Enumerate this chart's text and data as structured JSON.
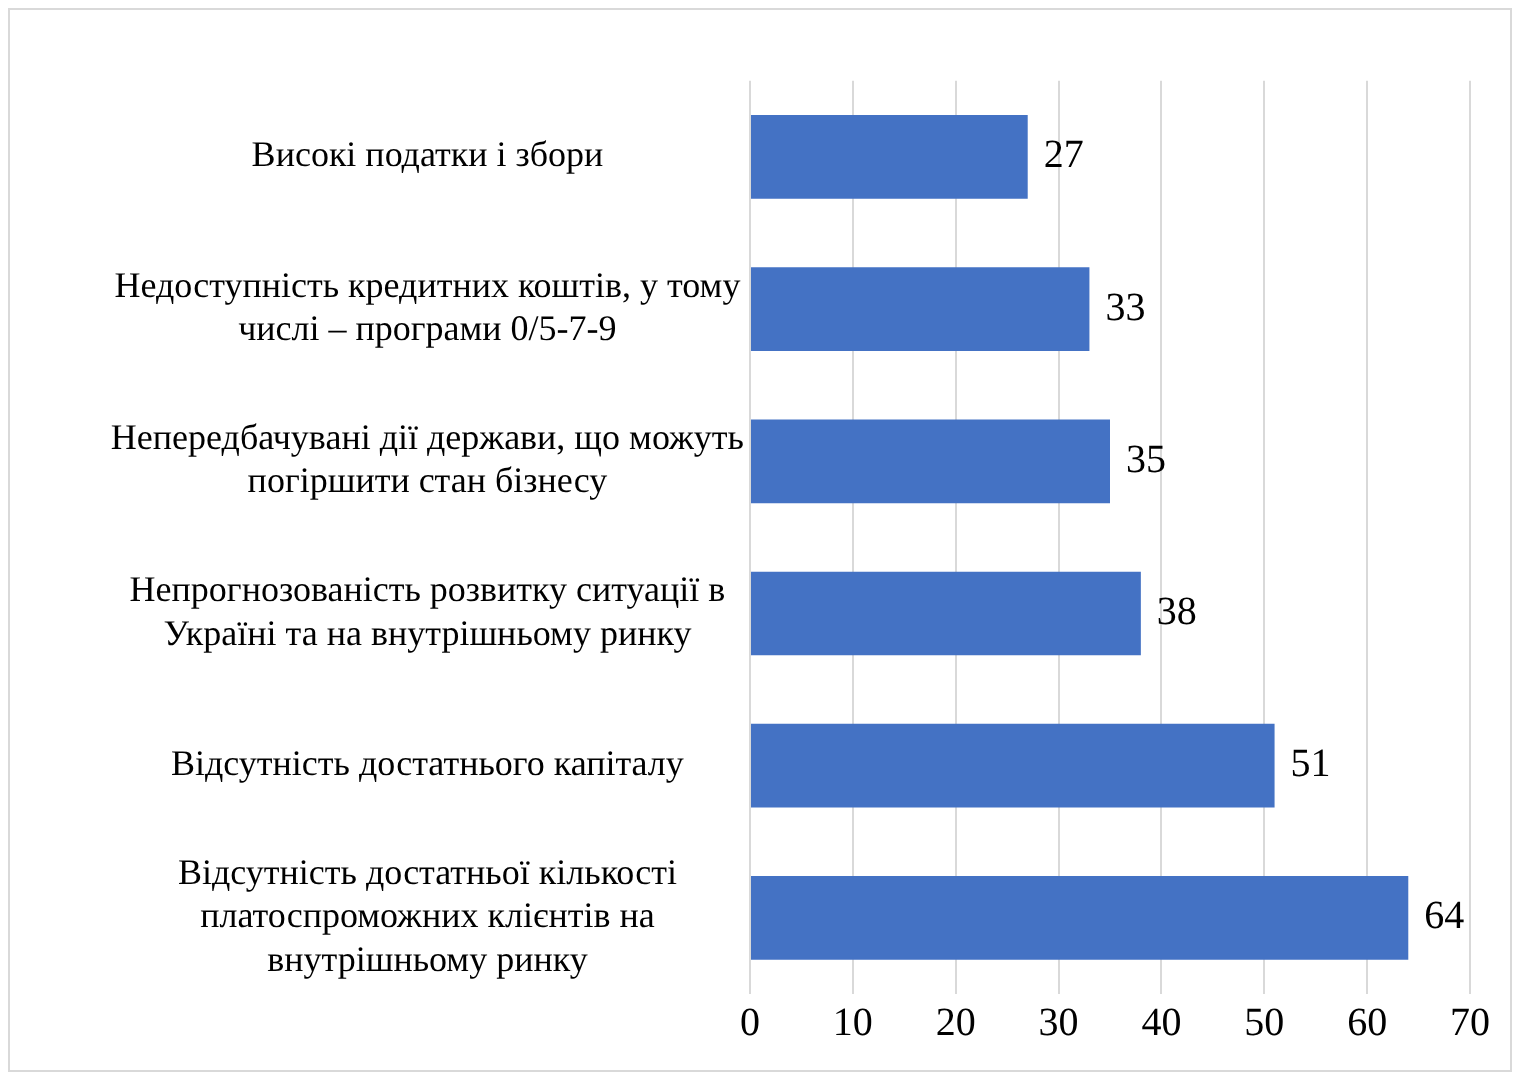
{
  "chart_data": {
    "type": "bar",
    "orientation": "horizontal",
    "categories": [
      "Високі податки і збори",
      "Недоступність кредитних коштів, у тому числі – програми 0/5-7-9",
      "Непередбачувані дії держави, що можуть погіршити стан бізнесу",
      "Непрогнозованість розвитку ситуації в Україні та на внутрішньому ринку",
      "Відсутність достатнього капіталу",
      "Відсутність достатньої кількості платоспроможних клієнтів на внутрішньому ринку"
    ],
    "values": [
      27,
      33,
      35,
      38,
      51,
      64
    ],
    "color": "#4472c4",
    "xlim": [
      0,
      70
    ],
    "xticks": [
      0,
      10,
      20,
      30,
      40,
      50,
      60,
      70
    ],
    "grid": "x",
    "data_labels": true
  }
}
